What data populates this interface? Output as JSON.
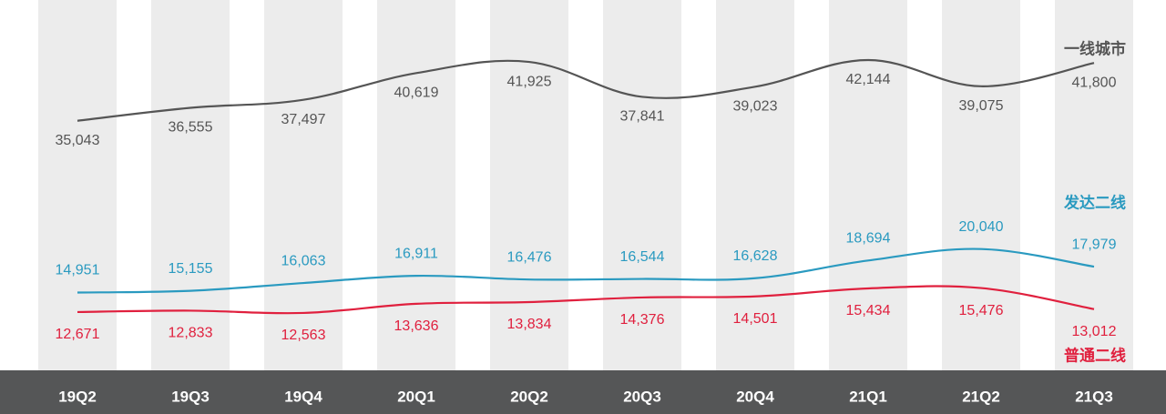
{
  "chart_data": {
    "type": "line",
    "categories": [
      "19Q2",
      "19Q3",
      "19Q4",
      "20Q1",
      "20Q2",
      "20Q3",
      "20Q4",
      "21Q1",
      "21Q2",
      "21Q3"
    ],
    "series": [
      {
        "name": "一线城市",
        "color": "#555555",
        "values": [
          35043,
          36555,
          37497,
          40619,
          41925,
          37841,
          39023,
          42144,
          39075,
          41800
        ],
        "value_labels": [
          "35,043",
          "36,555",
          "37,497",
          "40,619",
          "41,925",
          "37,841",
          "39,023",
          "42,144",
          "39,075",
          "41,800"
        ]
      },
      {
        "name": "发达二线",
        "color": "#2a9ac0",
        "values": [
          14951,
          15155,
          16063,
          16911,
          16476,
          16544,
          16628,
          18694,
          20040,
          17979
        ],
        "value_labels": [
          "14,951",
          "15,155",
          "16,063",
          "16,911",
          "16,476",
          "16,544",
          "16,628",
          "18,694",
          "20,040",
          "17,979"
        ]
      },
      {
        "name": "普通二线",
        "color": "#e0203e",
        "values": [
          12671,
          12833,
          12563,
          13636,
          13834,
          14376,
          14501,
          15434,
          15476,
          13012
        ],
        "value_labels": [
          "12,671",
          "12,833",
          "12,563",
          "13,636",
          "13,834",
          "14,376",
          "14,501",
          "15,434",
          "15,476",
          "13,012"
        ]
      }
    ]
  }
}
